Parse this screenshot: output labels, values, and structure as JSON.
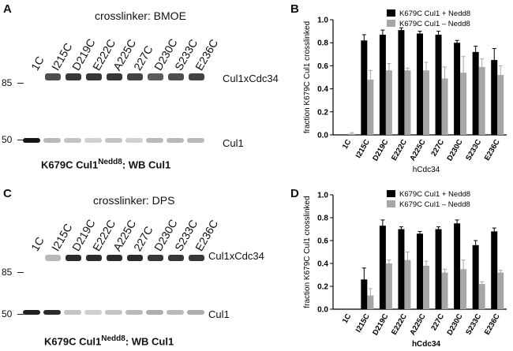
{
  "panels": {
    "a": {
      "letter": "A",
      "title": "crosslinker: BMOE",
      "lanes": [
        "1C",
        "I215C",
        "D219C",
        "E222C",
        "A225C",
        "227C",
        "D230C",
        "S233C",
        "E236C"
      ],
      "mw_markers": [
        "85",
        "50"
      ],
      "band_labels": [
        "Cul1xCdc34",
        "Cul1"
      ],
      "caption_main": "K679C Cul1",
      "caption_sup": "Nedd8",
      "caption_tail": ": WB Cul1",
      "crosslink_intensity": [
        0,
        0.75,
        0.85,
        0.85,
        0.85,
        0.8,
        0.7,
        0.75,
        0.8
      ],
      "cul1_intensity": [
        1.0,
        0.3,
        0.25,
        0.2,
        0.25,
        0.2,
        0.3,
        0.3,
        0.3
      ]
    },
    "c": {
      "letter": "C",
      "title": "crosslinker: DPS",
      "lanes": [
        "1C",
        "I215C",
        "D219C",
        "E222C",
        "A225C",
        "227C",
        "D230C",
        "S233C",
        "E236C"
      ],
      "mw_markers": [
        "85",
        "50"
      ],
      "band_labels": [
        "Cul1xCdc34",
        "Cul1"
      ],
      "caption_main": "K679C Cul1",
      "caption_sup": "Nedd8",
      "caption_tail": ": WB Cul1",
      "crosslink_intensity": [
        0,
        0.3,
        0.9,
        0.9,
        0.9,
        0.9,
        0.85,
        0.85,
        0.85
      ],
      "cul1_intensity": [
        0.95,
        0.9,
        0.25,
        0.2,
        0.25,
        0.3,
        0.35,
        0.3,
        0.35
      ]
    },
    "b": {
      "letter": "B"
    },
    "d": {
      "letter": "D"
    }
  },
  "chart_data": [
    {
      "type": "bar",
      "categories": [
        "1C",
        "I215C",
        "D219C",
        "E222C",
        "A225C",
        "227C",
        "D230C",
        "S233C",
        "E236C"
      ],
      "series": [
        {
          "name": "K679C Cul1 + Nedd8",
          "color": "#000000",
          "values": [
            0,
            0.82,
            0.87,
            0.91,
            0.88,
            0.87,
            0.8,
            0.72,
            0.65
          ],
          "errors": [
            0,
            0.05,
            0.04,
            0.02,
            0.02,
            0.03,
            0.02,
            0.05,
            0.1
          ]
        },
        {
          "name": "K679C Cul1 – Nedd8",
          "color": "#a6a6a6",
          "values": [
            0.01,
            0.48,
            0.56,
            0.56,
            0.56,
            0.49,
            0.54,
            0.59,
            0.52
          ],
          "errors": [
            0.01,
            0.08,
            0.06,
            0.02,
            0.07,
            0.1,
            0.14,
            0.07,
            0.08
          ]
        }
      ],
      "xlabel": "hCdc34",
      "ylabel": "fraction K679C Cul1 crosslinked",
      "ylim": [
        0,
        1.0
      ],
      "yticks": [
        "0.0",
        "0.2",
        "0.4",
        "0.6",
        "0.8",
        "1.0"
      ],
      "legend": "top-right"
    },
    {
      "type": "bar",
      "categories": [
        "1C",
        "I215C",
        "D219C",
        "E222C",
        "A225C",
        "227C",
        "D230C",
        "S233C",
        "E236C"
      ],
      "series": [
        {
          "name": "K679C Cul1 + Nedd8",
          "color": "#000000",
          "values": [
            0,
            0.26,
            0.73,
            0.7,
            0.66,
            0.7,
            0.75,
            0.56,
            0.68
          ],
          "errors": [
            0,
            0.1,
            0.05,
            0.02,
            0.02,
            0.02,
            0.03,
            0.04,
            0.03
          ]
        },
        {
          "name": "K679C Cul1 – Nedd8",
          "color": "#a6a6a6",
          "values": [
            0,
            0.12,
            0.4,
            0.43,
            0.38,
            0.32,
            0.35,
            0.22,
            0.32
          ],
          "errors": [
            0,
            0.06,
            0.03,
            0.07,
            0.04,
            0.03,
            0.08,
            0.02,
            0.02
          ]
        }
      ],
      "xlabel": "hCdc34",
      "ylabel": "fraction K679C Cul1 crosslinked",
      "ylim": [
        0,
        1.0
      ],
      "yticks": [
        "0.0",
        "0.2",
        "0.4",
        "0.6",
        "0.8",
        "1.0"
      ],
      "legend": "top-right"
    }
  ]
}
